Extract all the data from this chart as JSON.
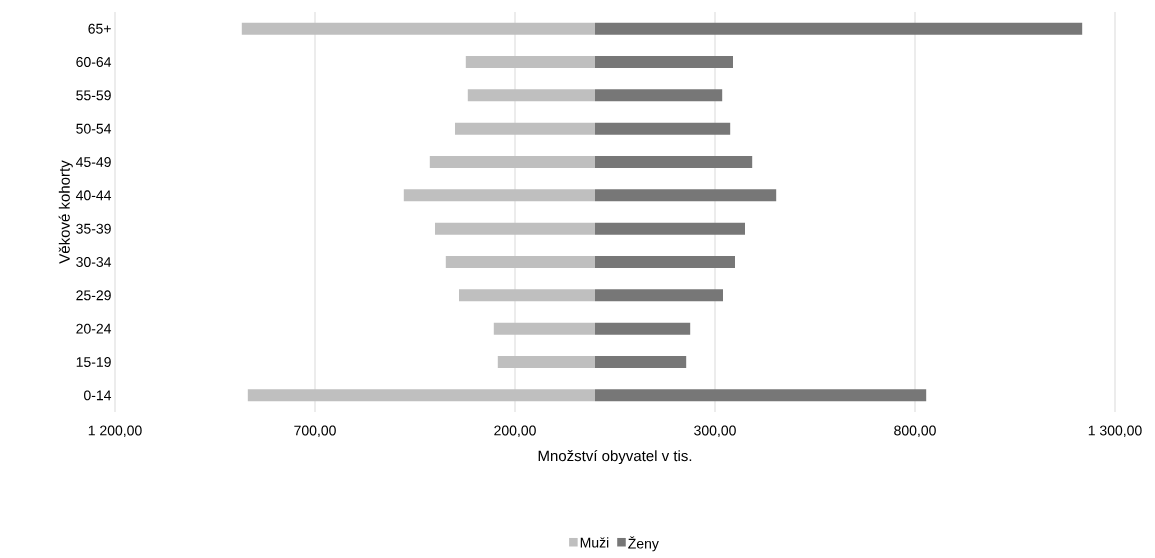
{
  "chart_data": {
    "type": "bar",
    "orientation": "horizontal",
    "stacked": true,
    "xlabel": "Množství obyvatel v tis.",
    "ylabel": "Věkové kohorty",
    "categories": [
      "65+",
      "60-64",
      "55-59",
      "50-54",
      "45-49",
      "40-44",
      "35-39",
      "30-34",
      "25-29",
      "20-24",
      "15-19",
      "0-14"
    ],
    "series": [
      {
        "name": "Muži",
        "color": "#bfbfbf",
        "values": [
          -883,
          -323,
          -318,
          -350,
          -413,
          -478,
          -400,
          -373,
          -340,
          -253,
          -243,
          -868
        ]
      },
      {
        "name": "Ženy",
        "color": "#777777",
        "values": [
          1218,
          345,
          318,
          338,
          393,
          453,
          375,
          350,
          320,
          238,
          228,
          828
        ]
      }
    ],
    "xlim": [
      -1200,
      1300
    ],
    "xticks": [
      {
        "value": -1200,
        "label": "1 200,00"
      },
      {
        "value": -700,
        "label": "700,00"
      },
      {
        "value": -200,
        "label": "200,00"
      },
      {
        "value": 300,
        "label": "300,00"
      },
      {
        "value": 800,
        "label": "800,00"
      },
      {
        "value": 1300,
        "label": "1 300,00"
      }
    ],
    "grid": "x",
    "legend": "bottom"
  }
}
